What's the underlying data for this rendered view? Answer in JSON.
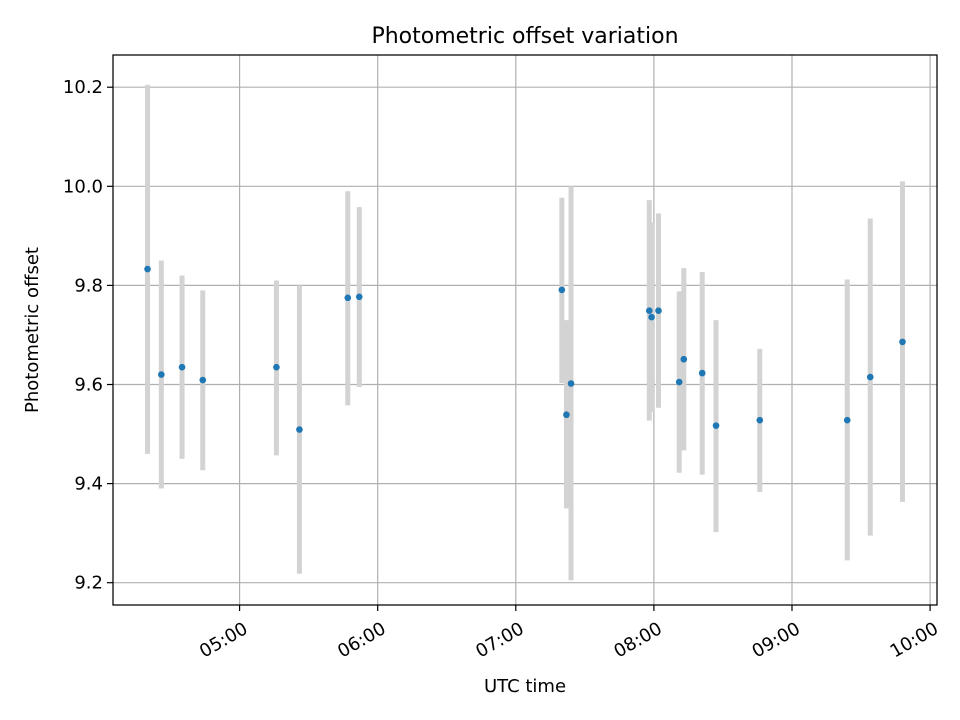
{
  "chart_data": {
    "type": "scatter",
    "title": "Photometric offset variation",
    "xlabel": "UTC time",
    "ylabel": "Photometric offset",
    "x_ticks": [
      "05:00",
      "06:00",
      "07:00",
      "08:00",
      "09:00",
      "10:00"
    ],
    "y_ticks": [
      "9.2",
      "9.4",
      "9.6",
      "9.8",
      "10.0",
      "10.2"
    ],
    "xlim": [
      "04:05",
      "10:03"
    ],
    "ylim": [
      9.155,
      10.265
    ],
    "grid": true,
    "colors": {
      "point": "#1f77b4",
      "errorbar": "#d3d3d3",
      "grid": "#b0b0b0"
    },
    "points": [
      {
        "t": "04:20",
        "y": 9.833,
        "ylo": 9.46,
        "yhi": 10.205
      },
      {
        "t": "04:26",
        "y": 9.62,
        "ylo": 9.39,
        "yhi": 9.85
      },
      {
        "t": "04:35",
        "y": 9.635,
        "ylo": 9.45,
        "yhi": 9.82
      },
      {
        "t": "04:44",
        "y": 9.609,
        "ylo": 9.427,
        "yhi": 9.79
      },
      {
        "t": "05:16",
        "y": 9.635,
        "ylo": 9.457,
        "yhi": 9.81
      },
      {
        "t": "05:26",
        "y": 9.509,
        "ylo": 9.218,
        "yhi": 9.8
      },
      {
        "t": "05:47",
        "y": 9.775,
        "ylo": 9.558,
        "yhi": 9.99
      },
      {
        "t": "05:52",
        "y": 9.777,
        "ylo": 9.595,
        "yhi": 9.958
      },
      {
        "t": "07:20",
        "y": 9.791,
        "ylo": 9.603,
        "yhi": 9.977
      },
      {
        "t": "07:22",
        "y": 9.539,
        "ylo": 9.35,
        "yhi": 9.73
      },
      {
        "t": "07:24",
        "y": 9.602,
        "ylo": 9.205,
        "yhi": 10.0
      },
      {
        "t": "07:58",
        "y": 9.749,
        "ylo": 9.527,
        "yhi": 9.972
      },
      {
        "t": "07:59",
        "y": 9.736,
        "ylo": 9.545,
        "yhi": 9.927
      },
      {
        "t": "08:02",
        "y": 9.749,
        "ylo": 9.553,
        "yhi": 9.945
      },
      {
        "t": "08:11",
        "y": 9.605,
        "ylo": 9.422,
        "yhi": 9.788
      },
      {
        "t": "08:13",
        "y": 9.651,
        "ylo": 9.467,
        "yhi": 9.835
      },
      {
        "t": "08:21",
        "y": 9.623,
        "ylo": 9.418,
        "yhi": 9.827
      },
      {
        "t": "08:27",
        "y": 9.517,
        "ylo": 9.302,
        "yhi": 9.73
      },
      {
        "t": "08:46",
        "y": 9.528,
        "ylo": 9.383,
        "yhi": 9.672
      },
      {
        "t": "09:24",
        "y": 9.528,
        "ylo": 9.245,
        "yhi": 9.812
      },
      {
        "t": "09:34",
        "y": 9.615,
        "ylo": 9.295,
        "yhi": 9.935
      },
      {
        "t": "09:48",
        "y": 9.686,
        "ylo": 9.363,
        "yhi": 10.01
      }
    ]
  }
}
